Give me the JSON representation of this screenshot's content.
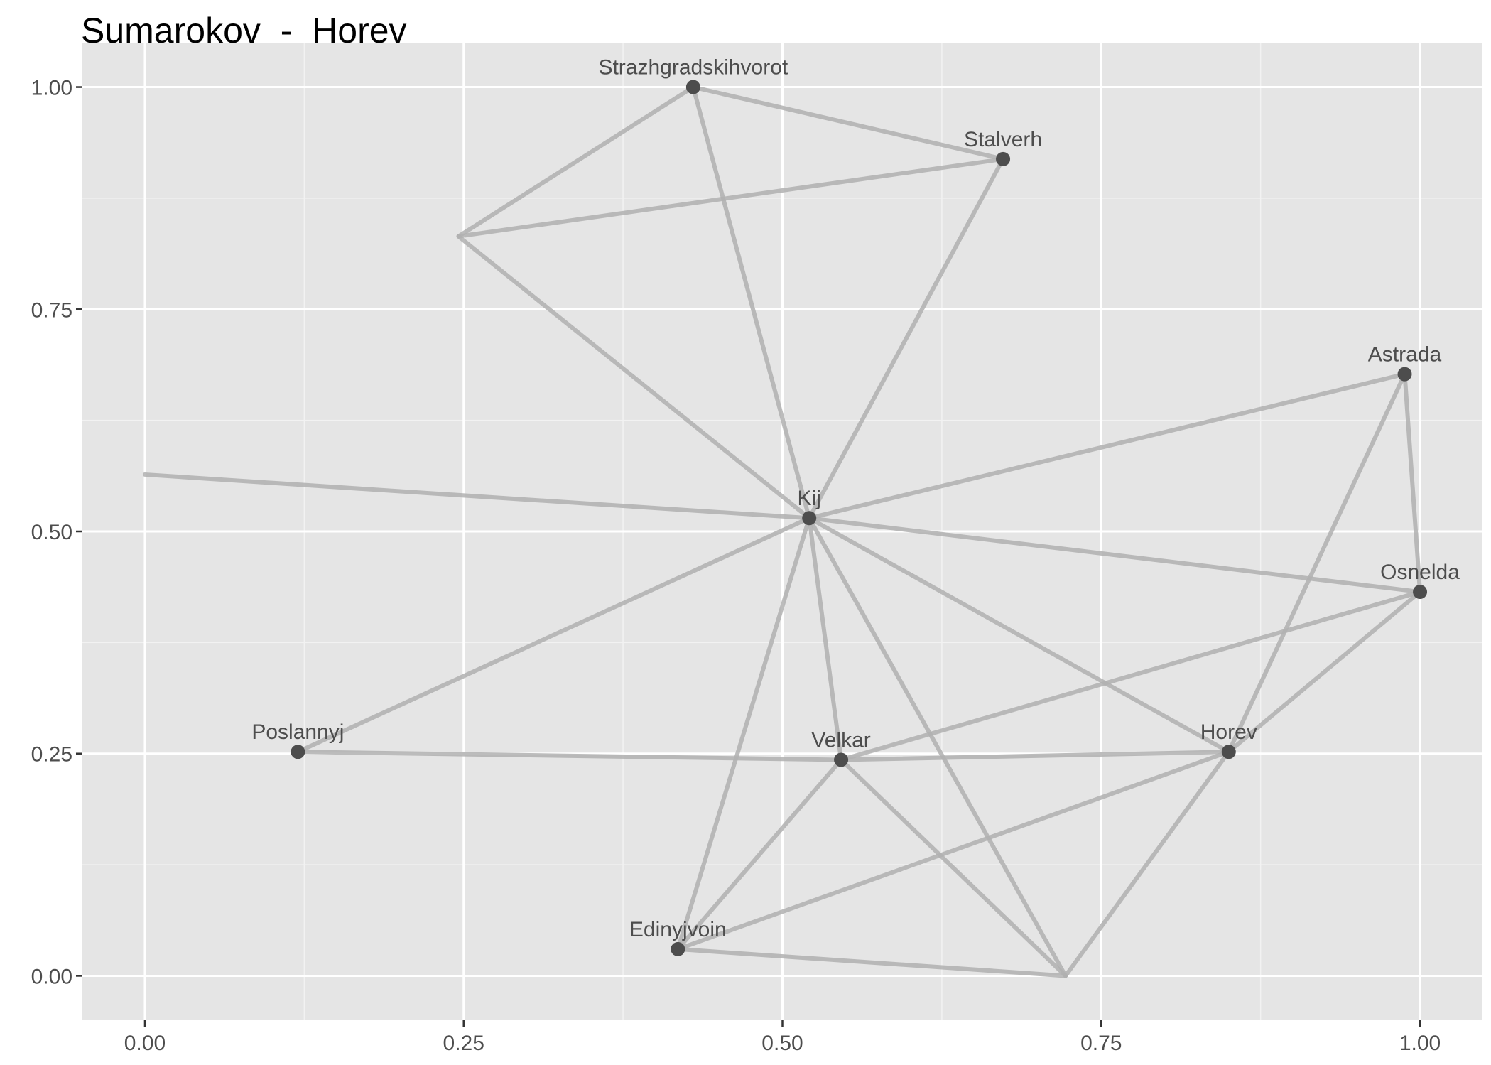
{
  "title": "Sumarokov_-_Horev",
  "chart_data": {
    "type": "network",
    "title": "Sumarokov_-_Horev",
    "xlabel": "",
    "ylabel": "",
    "xlim": [
      -0.049,
      1.049
    ],
    "ylim": [
      -0.05,
      1.05
    ],
    "x_ticks": [
      0.0,
      0.25,
      0.5,
      0.75,
      1.0
    ],
    "x_tick_labels": [
      "0.00",
      "0.25",
      "0.50",
      "0.75",
      "1.00"
    ],
    "y_ticks": [
      0.0,
      0.25,
      0.5,
      0.75,
      1.0
    ],
    "y_tick_labels": [
      "0.00",
      "0.25",
      "0.50",
      "0.75",
      "1.00"
    ],
    "grid": true,
    "colors": {
      "panel_background": "#e5e5e5",
      "grid_major": "#ffffff",
      "grid_minor": "#f2f2f2",
      "edge": "#b0b0b0",
      "node": "#4d4d4d",
      "label": "#4d4d4d"
    },
    "nodes": [
      {
        "id": "Strazhgradskihvorot",
        "label": "Strazhgradskihvorot",
        "x": 0.43,
        "y": 1.0
      },
      {
        "id": "Stalverh",
        "label": "Stalverh",
        "x": 0.673,
        "y": 0.919
      },
      {
        "id": "Astrada",
        "label": "Astrada",
        "x": 0.988,
        "y": 0.677
      },
      {
        "id": "Kij",
        "label": "Kij",
        "x": 0.521,
        "y": 0.515
      },
      {
        "id": "Osnelda",
        "label": "Osnelda",
        "x": 1.0,
        "y": 0.432
      },
      {
        "id": "Poslannyj",
        "label": "Poslannyj",
        "x": 0.12,
        "y": 0.252
      },
      {
        "id": "Velkar",
        "label": "Velkar",
        "x": 0.546,
        "y": 0.243
      },
      {
        "id": "Horev",
        "label": "Horev",
        "x": 0.85,
        "y": 0.252
      },
      {
        "id": "Edinyjvoin",
        "label": "Edinyjvoin",
        "x": 0.418,
        "y": 0.03
      },
      {
        "id": "u1",
        "label": "",
        "x": 0.246,
        "y": 0.832
      },
      {
        "id": "u2",
        "label": "",
        "x": 0.0,
        "y": 0.564
      },
      {
        "id": "u3",
        "label": "",
        "x": 0.722,
        "y": 0.0
      }
    ],
    "edges": [
      [
        "Strazhgradskihvorot",
        "Stalverh"
      ],
      [
        "Strazhgradskihvorot",
        "u1"
      ],
      [
        "Strazhgradskihvorot",
        "Kij"
      ],
      [
        "u1",
        "Stalverh"
      ],
      [
        "u1",
        "Kij"
      ],
      [
        "Stalverh",
        "Kij"
      ],
      [
        "u2",
        "Kij"
      ],
      [
        "Kij",
        "Astrada"
      ],
      [
        "Kij",
        "Osnelda"
      ],
      [
        "Kij",
        "Poslannyj"
      ],
      [
        "Kij",
        "Velkar"
      ],
      [
        "Kij",
        "Horev"
      ],
      [
        "Kij",
        "Edinyjvoin"
      ],
      [
        "Kij",
        "u3"
      ],
      [
        "Astrada",
        "Osnelda"
      ],
      [
        "Astrada",
        "Horev"
      ],
      [
        "Osnelda",
        "Velkar"
      ],
      [
        "Osnelda",
        "Horev"
      ],
      [
        "Poslannyj",
        "Velkar"
      ],
      [
        "Velkar",
        "Horev"
      ],
      [
        "Velkar",
        "Edinyjvoin"
      ],
      [
        "Velkar",
        "u3"
      ],
      [
        "Horev",
        "Edinyjvoin"
      ],
      [
        "Horev",
        "u3"
      ],
      [
        "Edinyjvoin",
        "u3"
      ]
    ]
  }
}
